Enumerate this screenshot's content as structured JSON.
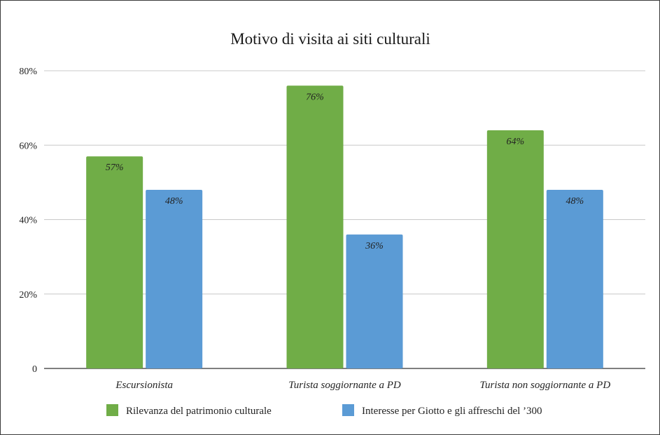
{
  "chart_data": {
    "type": "bar",
    "title": "Motivo di visita ai siti culturali",
    "categories": [
      "Escursionista",
      "Turista soggiornante a PD",
      "Turista non soggiornante a PD"
    ],
    "series": [
      {
        "name": "Rilevanza del patrimonio culturale",
        "values": [
          57,
          76,
          64
        ],
        "labels": [
          "57%",
          "76%",
          "64%"
        ],
        "color": "#70ad47"
      },
      {
        "name": "Interesse per Giotto e gli affreschi del ’300",
        "values": [
          48,
          36,
          48
        ],
        "labels": [
          "48%",
          "36%",
          "48%"
        ],
        "color": "#5b9bd5"
      }
    ],
    "y_ticks": [
      {
        "value": 0,
        "label": "0"
      },
      {
        "value": 20,
        "label": "20%"
      },
      {
        "value": 40,
        "label": "40%"
      },
      {
        "value": 60,
        "label": "60%"
      },
      {
        "value": 80,
        "label": "80%"
      }
    ],
    "ylim": [
      0,
      80
    ],
    "grid": true,
    "legend_position": "bottom",
    "xlabel": "",
    "ylabel": ""
  }
}
